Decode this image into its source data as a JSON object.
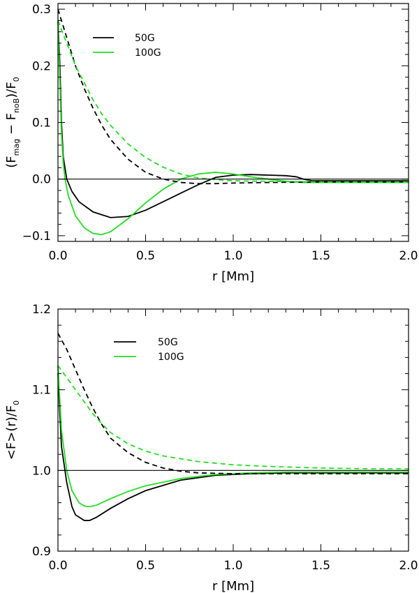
{
  "colors": {
    "black": "#000000",
    "green": "#22dd22"
  },
  "chart_data": [
    {
      "type": "line",
      "xlabel": "r [Mm]",
      "ylabel": "(F_mag − F_noB)/F_0",
      "ylabel_parts": {
        "open": "(F",
        "sub1": "mag",
        "minus": " − F",
        "sub2": "noB",
        "close": ")/F",
        "sub3": "0"
      },
      "xlim": [
        0,
        2
      ],
      "ylim": [
        -0.11,
        0.31
      ],
      "xticks": [
        0.0,
        0.5,
        1.0,
        1.5,
        2.0
      ],
      "xtick_labels": [
        "0.0",
        "0.5",
        "1.0",
        "1.5",
        "2.0"
      ],
      "yticks": [
        -0.1,
        0.0,
        0.1,
        0.2,
        0.3
      ],
      "ytick_labels": [
        "−0.1",
        "0.0",
        "0.1",
        "0.2",
        "0.3"
      ],
      "hline": 0.0,
      "legend": [
        {
          "label": "50G",
          "color": "#000000"
        },
        {
          "label": "100G",
          "color": "#22dd22"
        }
      ],
      "series": [
        {
          "name": "50G solid",
          "color": "#000000",
          "dash": false,
          "x": [
            0.0,
            0.01,
            0.02,
            0.03,
            0.05,
            0.08,
            0.12,
            0.2,
            0.3,
            0.4,
            0.5,
            0.6,
            0.7,
            0.8,
            0.9,
            1.0,
            1.1,
            1.2,
            1.3,
            1.36,
            1.4,
            1.45,
            1.5,
            1.7,
            2.0
          ],
          "y": [
            0.28,
            0.21,
            0.1,
            0.04,
            0.0,
            -0.022,
            -0.04,
            -0.058,
            -0.068,
            -0.066,
            -0.055,
            -0.04,
            -0.025,
            -0.01,
            0.003,
            0.007,
            0.008,
            0.007,
            0.006,
            0.004,
            0.0,
            -0.003,
            -0.003,
            -0.003,
            -0.003
          ]
        },
        {
          "name": "100G solid",
          "color": "#22dd22",
          "dash": false,
          "x": [
            0.0,
            0.01,
            0.02,
            0.03,
            0.04,
            0.06,
            0.1,
            0.15,
            0.2,
            0.25,
            0.3,
            0.4,
            0.5,
            0.6,
            0.7,
            0.8,
            0.9,
            1.0,
            1.1,
            1.2,
            1.3,
            1.4,
            1.5,
            2.0
          ],
          "y": [
            0.28,
            0.18,
            0.08,
            0.03,
            0.0,
            -0.03,
            -0.065,
            -0.086,
            -0.096,
            -0.098,
            -0.093,
            -0.07,
            -0.042,
            -0.018,
            0.0,
            0.009,
            0.012,
            0.009,
            0.004,
            0.0,
            -0.004,
            -0.006,
            -0.006,
            -0.006
          ]
        },
        {
          "name": "50G dashed",
          "color": "#000000",
          "dash": true,
          "x": [
            0.0,
            0.02,
            0.05,
            0.1,
            0.15,
            0.2,
            0.25,
            0.3,
            0.4,
            0.5,
            0.6,
            0.7,
            0.8,
            0.9,
            1.0,
            1.2,
            1.5,
            1.8,
            2.0
          ],
          "y": [
            0.3,
            0.28,
            0.25,
            0.2,
            0.16,
            0.125,
            0.095,
            0.07,
            0.035,
            0.012,
            0.0,
            -0.006,
            -0.008,
            -0.008,
            -0.007,
            -0.006,
            -0.005,
            -0.005,
            -0.005
          ]
        },
        {
          "name": "100G dashed",
          "color": "#22dd22",
          "dash": true,
          "x": [
            0.0,
            0.05,
            0.1,
            0.15,
            0.2,
            0.25,
            0.3,
            0.4,
            0.5,
            0.6,
            0.7,
            0.8,
            0.9,
            1.0,
            1.2,
            1.5,
            1.8,
            2.0
          ],
          "y": [
            0.28,
            0.24,
            0.2,
            0.17,
            0.14,
            0.115,
            0.095,
            0.062,
            0.038,
            0.021,
            0.009,
            0.002,
            -0.001,
            -0.003,
            -0.004,
            -0.005,
            -0.005,
            -0.005
          ]
        }
      ]
    },
    {
      "type": "line",
      "xlabel": "r [Mm]",
      "ylabel": "<F>(r)/F_0",
      "ylabel_parts": {
        "main": "<F>(r)/F",
        "sub": "0"
      },
      "xlim": [
        0,
        2
      ],
      "ylim": [
        0.9,
        1.2
      ],
      "xticks": [
        0.0,
        0.5,
        1.0,
        1.5,
        2.0
      ],
      "xtick_labels": [
        "0.0",
        "0.5",
        "1.0",
        "1.5",
        "2.0"
      ],
      "yticks": [
        0.9,
        1.0,
        1.1,
        1.2
      ],
      "ytick_labels": [
        "0.9",
        "1.0",
        "1.1",
        "1.2"
      ],
      "hline": 1.0,
      "legend": [
        {
          "label": "50G",
          "color": "#000000"
        },
        {
          "label": "100G",
          "color": "#22dd22"
        }
      ],
      "series": [
        {
          "name": "50G solid",
          "color": "#000000",
          "dash": false,
          "x": [
            0.0,
            0.02,
            0.05,
            0.08,
            0.1,
            0.15,
            0.18,
            0.22,
            0.3,
            0.4,
            0.5,
            0.7,
            0.9,
            1.1,
            1.3,
            1.5,
            2.0
          ],
          "y": [
            1.12,
            1.03,
            0.985,
            0.955,
            0.945,
            0.938,
            0.938,
            0.942,
            0.953,
            0.965,
            0.975,
            0.988,
            0.994,
            0.996,
            0.997,
            0.997,
            0.997
          ]
        },
        {
          "name": "100G solid",
          "color": "#22dd22",
          "dash": false,
          "x": [
            0.0,
            0.02,
            0.05,
            0.08,
            0.12,
            0.15,
            0.18,
            0.22,
            0.3,
            0.4,
            0.5,
            0.7,
            0.9,
            1.1,
            1.3,
            1.5,
            2.0
          ],
          "y": [
            1.13,
            1.05,
            1.0,
            0.975,
            0.96,
            0.956,
            0.955,
            0.957,
            0.965,
            0.974,
            0.981,
            0.99,
            0.995,
            0.997,
            0.998,
            0.998,
            0.998
          ]
        },
        {
          "name": "50G dashed",
          "color": "#000000",
          "dash": true,
          "x": [
            0.0,
            0.05,
            0.1,
            0.15,
            0.2,
            0.25,
            0.3,
            0.4,
            0.5,
            0.6,
            0.7,
            0.8,
            1.0,
            1.2,
            1.5,
            2.0
          ],
          "y": [
            1.17,
            1.15,
            1.125,
            1.1,
            1.077,
            1.057,
            1.04,
            1.022,
            1.01,
            1.003,
            0.999,
            0.997,
            0.996,
            0.996,
            0.996,
            0.996
          ]
        },
        {
          "name": "100G dashed",
          "color": "#22dd22",
          "dash": true,
          "x": [
            0.0,
            0.05,
            0.1,
            0.15,
            0.2,
            0.25,
            0.3,
            0.4,
            0.5,
            0.6,
            0.8,
            1.0,
            1.2,
            1.5,
            1.8,
            2.0
          ],
          "y": [
            1.13,
            1.115,
            1.1,
            1.085,
            1.07,
            1.058,
            1.047,
            1.033,
            1.024,
            1.018,
            1.011,
            1.007,
            1.005,
            1.003,
            1.002,
            1.002
          ]
        }
      ]
    }
  ]
}
